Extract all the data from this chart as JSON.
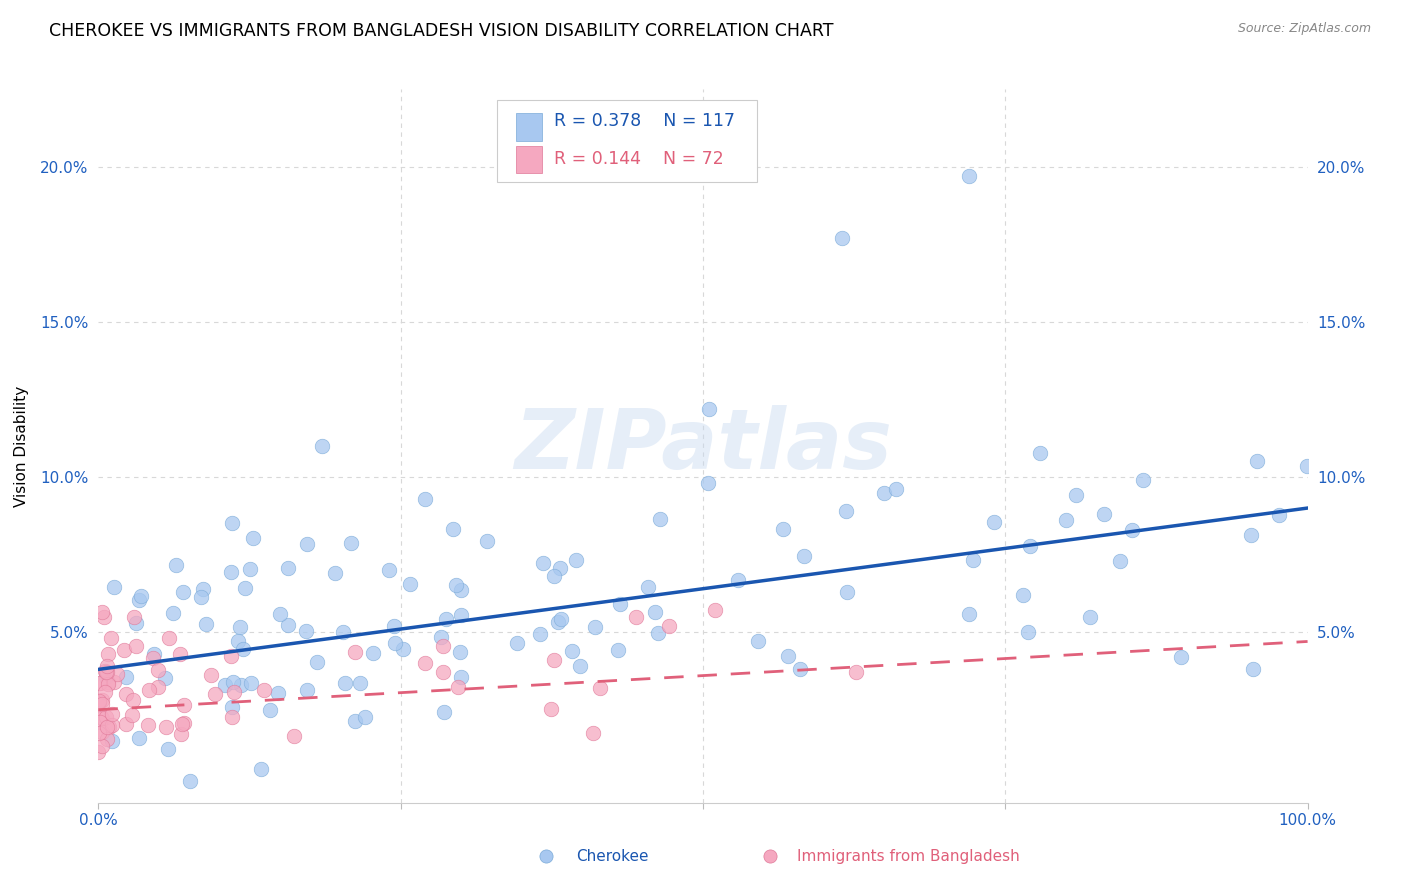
{
  "title": "CHEROKEE VS IMMIGRANTS FROM BANGLADESH VISION DISABILITY CORRELATION CHART",
  "source": "Source: ZipAtlas.com",
  "ylabel": "Vision Disability",
  "xlim": [
    0.0,
    1.0
  ],
  "ylim": [
    -0.005,
    0.225
  ],
  "xticks": [
    0.0,
    0.25,
    0.5,
    0.75,
    1.0
  ],
  "xticklabels": [
    "0.0%",
    "",
    "",
    "",
    "100.0%"
  ],
  "yticks": [
    0.0,
    0.05,
    0.1,
    0.15,
    0.2
  ],
  "yticklabels": [
    "",
    "5.0%",
    "10.0%",
    "15.0%",
    "20.0%"
  ],
  "cherokee_color": "#a8c8f0",
  "cherokee_edge_color": "#7aaad8",
  "cherokee_line_color": "#1a56b0",
  "bangladesh_color": "#f5a8c0",
  "bangladesh_edge_color": "#e07898",
  "bangladesh_line_color": "#e0607a",
  "background_color": "#ffffff",
  "watermark": "ZIPatlas",
  "cherokee_intercept": 0.038,
  "cherokee_slope": 0.052,
  "bangladesh_intercept": 0.025,
  "bangladesh_slope": 0.022,
  "grid_color": "#d8d8d8",
  "title_fontsize": 12.5,
  "axis_label_fontsize": 11,
  "tick_fontsize": 11,
  "tick_color": "#2060c0",
  "source_color": "#888888"
}
